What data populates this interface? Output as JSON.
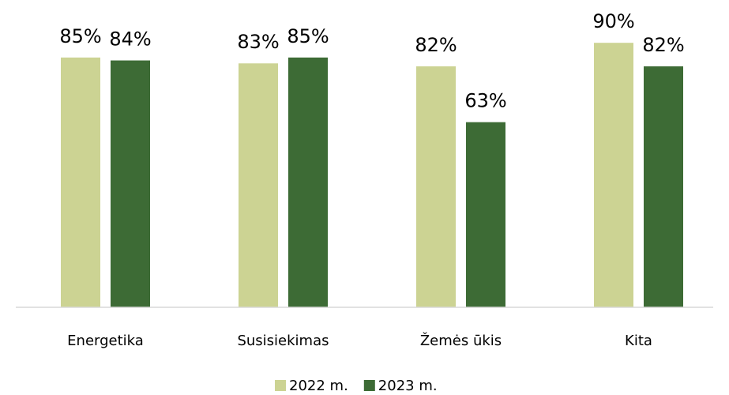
{
  "chart_data": {
    "type": "bar",
    "categories": [
      "Energetika",
      "Susisiekimas",
      "Žemės ūkis",
      "Kita"
    ],
    "series": [
      {
        "name": "2022 m.",
        "color": "#ccd393",
        "values": [
          85,
          83,
          82,
          90
        ],
        "value_labels": [
          "85%",
          "83%",
          "82%",
          "90%"
        ]
      },
      {
        "name": "2023 m.",
        "color": "#3d6b35",
        "values": [
          84,
          85,
          63,
          82
        ],
        "value_labels": [
          "84%",
          "85%",
          "63%",
          "82%"
        ]
      }
    ],
    "ylim": [
      0,
      100
    ],
    "legend": "bottom"
  }
}
